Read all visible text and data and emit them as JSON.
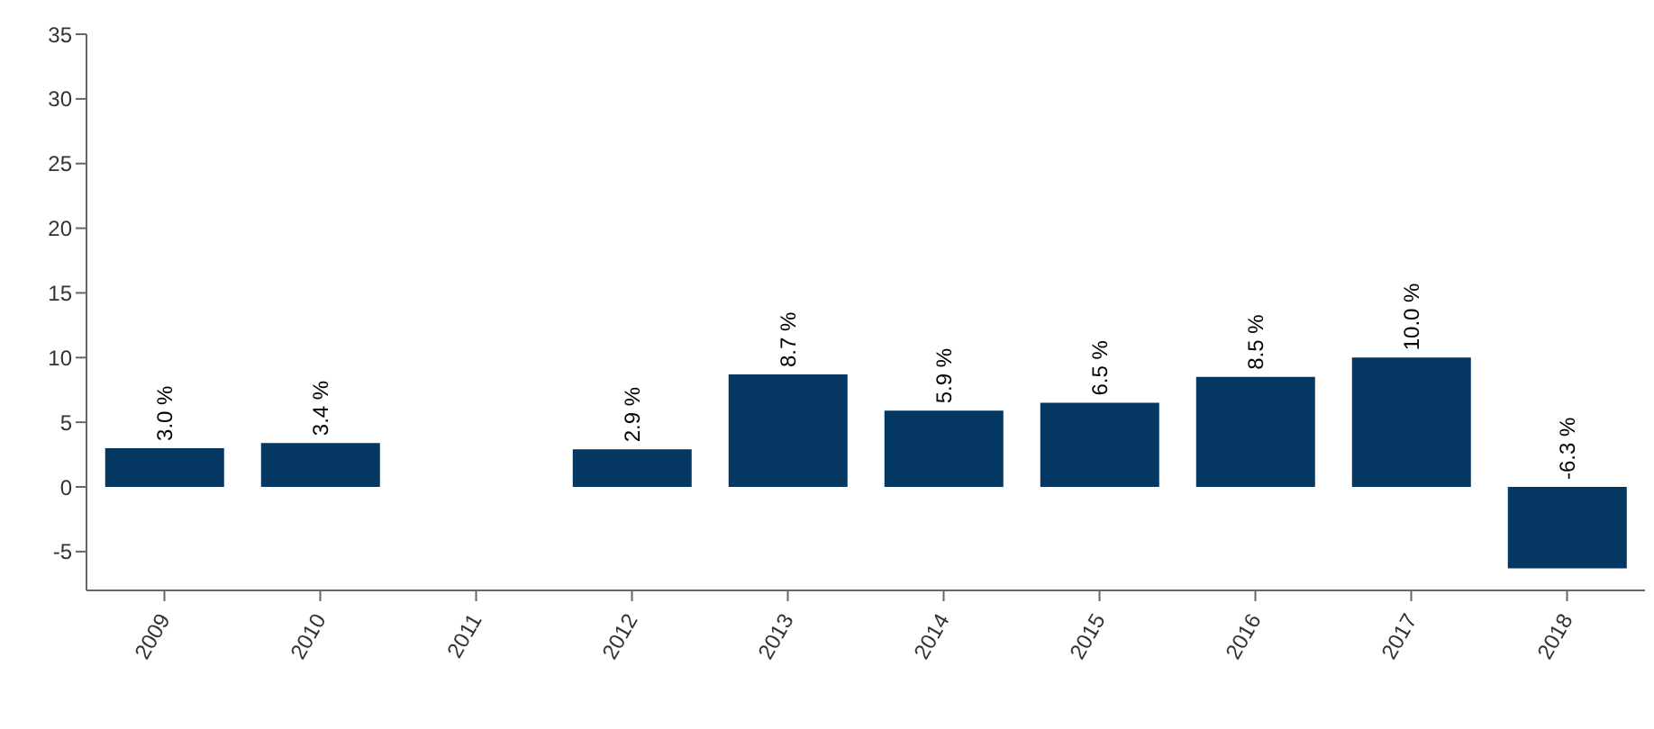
{
  "chart_data": {
    "type": "bar",
    "categories": [
      "2009",
      "2010",
      "2011",
      "2012",
      "2013",
      "2014",
      "2015",
      "2016",
      "2017",
      "2018"
    ],
    "series": [
      {
        "color": "#053763",
        "values": [
          3.0,
          3.4,
          null,
          2.9,
          8.7,
          5.9,
          6.5,
          8.5,
          10.0,
          -6.3
        ],
        "value_labels": [
          "3.0 %",
          "3.4 %",
          null,
          "2.9 %",
          "8.7 %",
          "5.9 %",
          "6.5 %",
          "8.5 %",
          "10.0 %",
          "-6.3 %"
        ]
      }
    ],
    "ylim": [
      -8,
      35
    ],
    "yticks": [
      -5,
      0,
      5,
      10,
      15,
      20,
      25,
      30,
      35
    ],
    "grid": false,
    "legend": false
  }
}
